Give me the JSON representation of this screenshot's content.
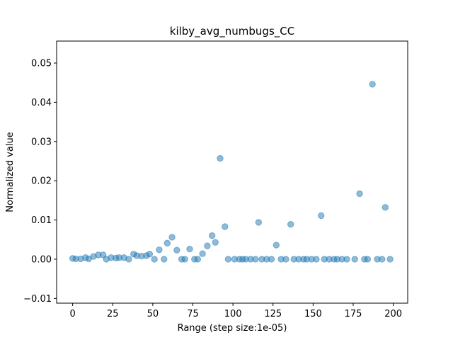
{
  "chart_data": {
    "type": "scatter",
    "title": "kilby_avg_numbugs_CC",
    "xlabel": "Range (step size:1e-05)",
    "ylabel": "Normalized value",
    "xlim": [
      -10,
      209
    ],
    "ylim": [
      -0.0112,
      0.0556
    ],
    "xticks": [
      0,
      25,
      50,
      75,
      100,
      125,
      150,
      175,
      200
    ],
    "yticks": [
      -0.01,
      0.0,
      0.01,
      0.02,
      0.03,
      0.04,
      0.05
    ],
    "ytick_labels": [
      "−0.01",
      "0.00",
      "0.01",
      "0.02",
      "0.03",
      "0.04",
      "0.05"
    ],
    "grid": false,
    "marker_color": "#1f77b4",
    "points": [
      {
        "x": 0,
        "y": 0.0002
      },
      {
        "x": 2,
        "y": 0.0001
      },
      {
        "x": 5,
        "y": 0.0001
      },
      {
        "x": 8,
        "y": 0.0004
      },
      {
        "x": 10,
        "y": 0.0001
      },
      {
        "x": 13,
        "y": 0.0007
      },
      {
        "x": 16,
        "y": 0.0011
      },
      {
        "x": 19,
        "y": 0.0011
      },
      {
        "x": 21,
        "y": 0.0
      },
      {
        "x": 24,
        "y": 0.0004
      },
      {
        "x": 27,
        "y": 0.0003
      },
      {
        "x": 29,
        "y": 0.0004
      },
      {
        "x": 32,
        "y": 0.0004
      },
      {
        "x": 35,
        "y": 0.0
      },
      {
        "x": 38,
        "y": 0.0013
      },
      {
        "x": 40,
        "y": 0.0009
      },
      {
        "x": 43,
        "y": 0.0008
      },
      {
        "x": 46,
        "y": 0.0009
      },
      {
        "x": 48,
        "y": 0.0013
      },
      {
        "x": 51,
        "y": 0.0
      },
      {
        "x": 54,
        "y": 0.0024
      },
      {
        "x": 57,
        "y": 0.0
      },
      {
        "x": 59,
        "y": 0.0041
      },
      {
        "x": 62,
        "y": 0.0056
      },
      {
        "x": 65,
        "y": 0.0023
      },
      {
        "x": 68,
        "y": 0.0
      },
      {
        "x": 70,
        "y": 0.0
      },
      {
        "x": 73,
        "y": 0.0026
      },
      {
        "x": 76,
        "y": 0.0
      },
      {
        "x": 78,
        "y": 0.0
      },
      {
        "x": 81,
        "y": 0.0014
      },
      {
        "x": 84,
        "y": 0.0034
      },
      {
        "x": 87,
        "y": 0.006
      },
      {
        "x": 89,
        "y": 0.0043
      },
      {
        "x": 92,
        "y": 0.0257
      },
      {
        "x": 95,
        "y": 0.0083
      },
      {
        "x": 97,
        "y": 0.0
      },
      {
        "x": 101,
        "y": 0.0
      },
      {
        "x": 104,
        "y": 0.0
      },
      {
        "x": 106,
        "y": 0.0
      },
      {
        "x": 108,
        "y": 0.0
      },
      {
        "x": 111,
        "y": 0.0
      },
      {
        "x": 114,
        "y": 0.0
      },
      {
        "x": 116,
        "y": 0.0094
      },
      {
        "x": 118,
        "y": 0.0
      },
      {
        "x": 121,
        "y": 0.0
      },
      {
        "x": 124,
        "y": 0.0
      },
      {
        "x": 127,
        "y": 0.0036
      },
      {
        "x": 130,
        "y": 0.0
      },
      {
        "x": 133,
        "y": 0.0
      },
      {
        "x": 136,
        "y": 0.0089
      },
      {
        "x": 138,
        "y": 0.0
      },
      {
        "x": 141,
        "y": 0.0
      },
      {
        "x": 144,
        "y": 0.0
      },
      {
        "x": 146,
        "y": 0.0
      },
      {
        "x": 149,
        "y": 0.0
      },
      {
        "x": 152,
        "y": 0.0
      },
      {
        "x": 155,
        "y": 0.0111
      },
      {
        "x": 157,
        "y": 0.0
      },
      {
        "x": 160,
        "y": 0.0
      },
      {
        "x": 163,
        "y": 0.0
      },
      {
        "x": 165,
        "y": 0.0
      },
      {
        "x": 168,
        "y": 0.0
      },
      {
        "x": 171,
        "y": 0.0
      },
      {
        "x": 176,
        "y": 0.0
      },
      {
        "x": 179,
        "y": 0.0167
      },
      {
        "x": 182,
        "y": 0.0
      },
      {
        "x": 184,
        "y": 0.0
      },
      {
        "x": 187,
        "y": 0.0446
      },
      {
        "x": 190,
        "y": 0.0
      },
      {
        "x": 193,
        "y": 0.0
      },
      {
        "x": 195,
        "y": 0.0132
      },
      {
        "x": 198,
        "y": 0.0
      }
    ]
  }
}
